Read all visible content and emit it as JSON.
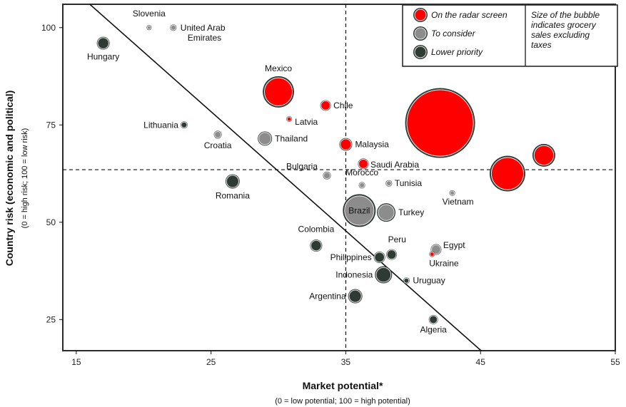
{
  "chart_data": {
    "type": "scatter",
    "subtype": "bubble",
    "xlabel": "Market potential*",
    "xlabel_note": "(0 = low potential; 100 = high potential)",
    "ylabel": "Country risk (economic and political)",
    "ylabel_note": "(0 = high risk; 100 = low risk)",
    "xlim": [
      14,
      55
    ],
    "ylim": [
      17,
      106
    ],
    "xticks": [
      "15",
      "25",
      "35",
      "45",
      "55"
    ],
    "yticks": [
      "25",
      "50",
      "75",
      "100"
    ],
    "reference_lines": {
      "x": 35,
      "y": 63.5
    },
    "trend_line": {
      "from": [
        16,
        106
      ],
      "to": [
        47,
        11
      ]
    },
    "grid": false,
    "legend_position": "top-right",
    "legend": [
      {
        "key": "radar",
        "label": "On the radar screen",
        "color": "#ff0000"
      },
      {
        "key": "consider",
        "label": "To consider",
        "color": "#8c8c8c"
      },
      {
        "key": "lower",
        "label": "Lower priority",
        "color": "#2f3a35"
      }
    ],
    "size_note": [
      "Size of the bubble",
      "indicates grocery",
      "sales excluding",
      "taxes"
    ],
    "points": [
      {
        "label": [
          "Slovenia"
        ],
        "x": 20.4,
        "y": 100,
        "r": 3.5,
        "cat": "consider"
      },
      {
        "label": [
          "United Arab",
          "Emirates"
        ],
        "x": 22.2,
        "y": 100,
        "r": 4.5,
        "cat": "consider"
      },
      {
        "label": [
          "Hungary"
        ],
        "x": 17,
        "y": 96,
        "r": 9,
        "cat": "lower"
      },
      {
        "label": [
          "Mexico"
        ],
        "x": 30,
        "y": 83.5,
        "r": 22,
        "cat": "radar"
      },
      {
        "label": [
          "Chile"
        ],
        "x": 33.5,
        "y": 80,
        "r": 7.5,
        "cat": "radar"
      },
      {
        "label": [
          "Latvia"
        ],
        "x": 30.8,
        "y": 76.5,
        "r": 4,
        "cat": "radar"
      },
      {
        "label": [
          "Lithuania"
        ],
        "x": 23,
        "y": 75,
        "r": 5,
        "cat": "lower"
      },
      {
        "label": [
          "Croatia"
        ],
        "x": 25.5,
        "y": 72.5,
        "r": 5.5,
        "cat": "consider"
      },
      {
        "label": [
          "Thailand"
        ],
        "x": 29,
        "y": 71.5,
        "r": 10,
        "cat": "consider"
      },
      {
        "label": [
          ""
        ],
        "x": 42,
        "y": 75.5,
        "r": 49,
        "cat": "radar"
      },
      {
        "label": [
          "Malaysia"
        ],
        "x": 35,
        "y": 70,
        "r": 9,
        "cat": "radar"
      },
      {
        "label": [
          ""
        ],
        "x": 49.7,
        "y": 67.2,
        "r": 16,
        "cat": "radar"
      },
      {
        "label": [
          ""
        ],
        "x": 47,
        "y": 62.5,
        "r": 25,
        "cat": "radar"
      },
      {
        "label": [
          "Saudi Arabia"
        ],
        "x": 36.3,
        "y": 65,
        "r": 7.5,
        "cat": "radar"
      },
      {
        "label": [
          "Bulgaria"
        ],
        "x": 33.6,
        "y": 62,
        "r": 5.5,
        "cat": "consider"
      },
      {
        "label": [
          "Morocco"
        ],
        "x": 36.2,
        "y": 59.5,
        "r": 4.5,
        "cat": "consider"
      },
      {
        "label": [
          "Tunisia"
        ],
        "x": 38.2,
        "y": 60,
        "r": 4.5,
        "cat": "consider"
      },
      {
        "label": [
          "Romania"
        ],
        "x": 26.6,
        "y": 60.5,
        "r": 10,
        "cat": "lower"
      },
      {
        "label": [
          "Vietnam"
        ],
        "x": 42.9,
        "y": 57.5,
        "r": 4,
        "cat": "consider"
      },
      {
        "label": [
          "Brazil"
        ],
        "x": 36,
        "y": 53,
        "r": 23,
        "cat": "consider"
      },
      {
        "label": [
          "Turkey"
        ],
        "x": 38,
        "y": 52.5,
        "r": 13,
        "cat": "consider"
      },
      {
        "label": [
          "Colombia"
        ],
        "x": 32.8,
        "y": 44,
        "r": 8.5,
        "cat": "lower"
      },
      {
        "label": [
          "Peru"
        ],
        "x": 38.4,
        "y": 41.7,
        "r": 7.5,
        "cat": "lower"
      },
      {
        "label": [
          "Philippines"
        ],
        "x": 37.5,
        "y": 41,
        "r": 8,
        "cat": "lower"
      },
      {
        "label": [
          "Egypt"
        ],
        "x": 41.7,
        "y": 43,
        "r": 7.5,
        "cat": "consider"
      },
      {
        "label": [
          "Ukraine"
        ],
        "x": 41.4,
        "y": 41.8,
        "r": 4,
        "cat": "radar"
      },
      {
        "label": [
          "Indonesia"
        ],
        "x": 37.8,
        "y": 36.5,
        "r": 12,
        "cat": "lower"
      },
      {
        "label": [
          "Uruguay"
        ],
        "x": 39.5,
        "y": 35,
        "r": 4.5,
        "cat": "lower"
      },
      {
        "label": [
          "Argentina"
        ],
        "x": 35.7,
        "y": 31,
        "r": 10,
        "cat": "lower"
      },
      {
        "label": [
          "Algeria"
        ],
        "x": 41.5,
        "y": 25,
        "r": 6.5,
        "cat": "lower"
      }
    ]
  }
}
